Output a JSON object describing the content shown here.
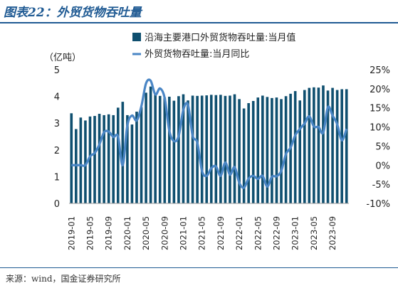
{
  "figure": {
    "title": "图表22：外贸货物吞吐量",
    "source": "来源：wind，国金证券研究所"
  },
  "chart_data": {
    "type": "bar",
    "title": "",
    "ylabel_left": "（亿吨）",
    "y_left_lim": [
      0,
      5
    ],
    "y_left_ticks": [
      "0",
      "1",
      "2",
      "3",
      "4",
      "5"
    ],
    "y_right_lim": [
      -10,
      25
    ],
    "y_right_ticks": [
      "-10%",
      "-5%",
      "0%",
      "5%",
      "10%",
      "15%",
      "20%",
      "25%"
    ],
    "legend_position": "top-center",
    "categories": [
      "2019-01",
      "2019-02",
      "2019-03",
      "2019-04",
      "2019-05",
      "2019-06",
      "2019-07",
      "2019-08",
      "2019-09",
      "2019-10",
      "2019-11",
      "2019-12",
      "2020-01",
      "2020-02",
      "2020-03",
      "2020-04",
      "2020-05",
      "2020-06",
      "2020-07",
      "2020-08",
      "2020-09",
      "2020-10",
      "2020-11",
      "2020-12",
      "2021-01",
      "2021-02",
      "2021-03",
      "2021-04",
      "2021-05",
      "2021-06",
      "2021-07",
      "2021-08",
      "2021-09",
      "2021-10",
      "2021-11",
      "2021-12",
      "2022-01",
      "2022-02",
      "2022-03",
      "2022-04",
      "2022-05",
      "2022-06",
      "2022-07",
      "2022-08",
      "2022-09",
      "2022-10",
      "2022-11",
      "2022-12",
      "2023-01",
      "2023-02",
      "2023-03",
      "2023-04",
      "2023-05",
      "2023-06",
      "2023-07",
      "2023-08",
      "2023-09",
      "2023-10",
      "2023-11",
      "2023-12"
    ],
    "x_tick_labels": [
      "2019-01",
      "2019-05",
      "2019-09",
      "2020-01",
      "2020-05",
      "2020-09",
      "2021-01",
      "2021-05",
      "2021-09",
      "2022-01",
      "2022-05",
      "2022-09",
      "2023-01",
      "2023-05",
      "2023-09"
    ],
    "series": [
      {
        "name": "沿海主要港口外贸货物吞吐量:当月值",
        "type": "bar",
        "axis": "left",
        "color": "#0f4f6f",
        "values": [
          3.37,
          2.78,
          3.21,
          3.1,
          3.25,
          3.27,
          3.35,
          3.3,
          3.33,
          3.3,
          3.58,
          3.8,
          3.3,
          2.95,
          3.43,
          3.6,
          4.14,
          4.37,
          4.08,
          4.02,
          3.96,
          3.99,
          3.84,
          4.01,
          4.08,
          3.85,
          4.03,
          4.02,
          4.03,
          4.04,
          4.06,
          4.05,
          4.06,
          4.02,
          4.03,
          4.08,
          3.9,
          3.55,
          3.75,
          3.83,
          3.96,
          4.03,
          3.98,
          3.94,
          3.96,
          3.9,
          4.01,
          4.1,
          4.2,
          3.85,
          4.24,
          4.32,
          4.34,
          4.33,
          4.41,
          4.22,
          4.32,
          4.24,
          4.27,
          4.27
        ]
      },
      {
        "name": "外贸货物吞吐量:当月同比",
        "type": "line",
        "axis": "right",
        "color": "#4a86c5",
        "values": [
          0.0,
          0.0,
          0.0,
          0.0,
          2.3,
          3.2,
          5.4,
          8.6,
          8.8,
          7.4,
          7.5,
          0.0,
          10.4,
          13.0,
          11.7,
          15.4,
          21.4,
          22.1,
          18.5,
          20.1,
          17.6,
          9.0,
          6.3,
          7.6,
          14.5,
          15.8,
          7.7,
          5.9,
          -1.5,
          -2.8,
          -0.8,
          -0.3,
          -2.8,
          0.7,
          -2.5,
          -0.5,
          -4.6,
          -5.9,
          -3.5,
          -2.8,
          -3.6,
          -2.8,
          -5.6,
          -3.0,
          -2.9,
          -1.5,
          2.9,
          4.6,
          7.8,
          9.5,
          10.9,
          12.8,
          10.1,
          10.0,
          8.5,
          15.2,
          13.0,
          10.7,
          6.5,
          9.5
        ]
      }
    ]
  }
}
